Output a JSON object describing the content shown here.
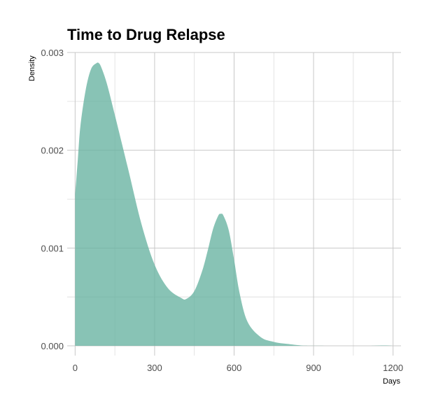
{
  "chart_data": {
    "type": "area",
    "title": "Time to Drug Relapse",
    "xlabel": "Days",
    "ylabel": "Density",
    "xlim": [
      -30,
      1230
    ],
    "ylim": [
      -0.0001,
      0.003
    ],
    "x_ticks": [
      0,
      300,
      600,
      900,
      1200
    ],
    "x_tick_labels": [
      "0",
      "300",
      "600",
      "900",
      "1200"
    ],
    "y_ticks": [
      0,
      0.001,
      0.002,
      0.003
    ],
    "y_tick_labels": [
      "0.000",
      "0.001",
      "0.002",
      "0.003"
    ],
    "grid": true,
    "legend": "none",
    "fill_color": "#66b2a0",
    "fill_opacity": 0.78,
    "series": [
      {
        "x": [
          0,
          10,
          20,
          40,
          60,
          80,
          90,
          100,
          120,
          150,
          200,
          250,
          300,
          350,
          400,
          420,
          450,
          480,
          500,
          520,
          540,
          550,
          560,
          580,
          600,
          620,
          650,
          700,
          750,
          800,
          850,
          870,
          900,
          1000,
          1100,
          1150,
          1180,
          1200
        ],
        "values": [
          0.00155,
          0.0019,
          0.00225,
          0.00262,
          0.00283,
          0.00289,
          0.00289,
          0.00284,
          0.00268,
          0.00236,
          0.00181,
          0.00125,
          0.00083,
          0.00059,
          0.00049,
          0.00048,
          0.00056,
          0.00077,
          0.00097,
          0.00119,
          0.00133,
          0.00135,
          0.00133,
          0.00118,
          0.00088,
          0.00055,
          0.00025,
          9e-05,
          4e-05,
          2e-05,
          5e-06,
          2e-06,
          1e-06,
          0.0,
          0.0,
          3e-06,
          3e-06,
          0.0
        ]
      }
    ]
  }
}
